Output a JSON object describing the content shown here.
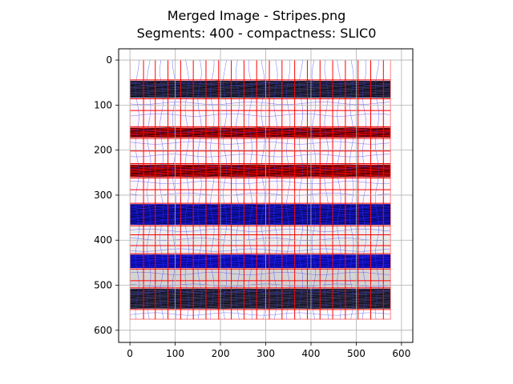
{
  "chart_data": {
    "type": "image",
    "title_line1": "Merged Image - Stripes.png",
    "title_line2": "Segments: 400 - compactness: SLIC0",
    "xlim": [
      -25,
      625
    ],
    "ylim": [
      627,
      -25
    ],
    "xticks": [
      "0",
      "100",
      "200",
      "300",
      "400",
      "500",
      "600"
    ],
    "yticks": [
      "0",
      "100",
      "200",
      "300",
      "400",
      "500",
      "600"
    ],
    "grid": true,
    "image_extent": {
      "x": [
        0,
        576
      ],
      "y": [
        0,
        576
      ]
    },
    "background_color": "#ffffff",
    "stripes": [
      {
        "y0": 46,
        "y1": 84,
        "color": "#2c2c4e",
        "pattern": "dark-texture"
      },
      {
        "y0": 84,
        "y1": 150,
        "color": "#fdf7fa",
        "pattern": "plain"
      },
      {
        "y0": 150,
        "y1": 172,
        "color": "#c00000",
        "pattern": "dark-texture"
      },
      {
        "y0": 172,
        "y1": 232,
        "color": "#fdf7fa",
        "pattern": "plain"
      },
      {
        "y0": 232,
        "y1": 260,
        "color": "#c00000",
        "pattern": "dark-texture"
      },
      {
        "y0": 260,
        "y1": 320,
        "color": "#fdf7fa",
        "pattern": "plain"
      },
      {
        "y0": 320,
        "y1": 366,
        "color": "#0a0a7a",
        "pattern": "blue-texture"
      },
      {
        "y0": 366,
        "y1": 432,
        "color": "#ececec",
        "pattern": "plain"
      },
      {
        "y0": 432,
        "y1": 462,
        "color": "#0a0a9e",
        "pattern": "blue-texture"
      },
      {
        "y0": 462,
        "y1": 508,
        "color": "#d6d3d3",
        "pattern": "plain"
      },
      {
        "y0": 508,
        "y1": 552,
        "color": "#2e2e4c",
        "pattern": "dark-texture"
      }
    ],
    "grid_lines": {
      "color": "#ff0000",
      "vertical_x": [
        0,
        30,
        56,
        84,
        112,
        140,
        168,
        196,
        224,
        252,
        280,
        308,
        336,
        364,
        392,
        420,
        448,
        476,
        504,
        532,
        560,
        576
      ],
      "horizontal_y": [
        44,
        86,
        112,
        148,
        174,
        202,
        230,
        262,
        288,
        318,
        368,
        388,
        412,
        430,
        464,
        490,
        506,
        554,
        576,
        588
      ]
    },
    "segment_boundary_color": "#3b3bff"
  }
}
